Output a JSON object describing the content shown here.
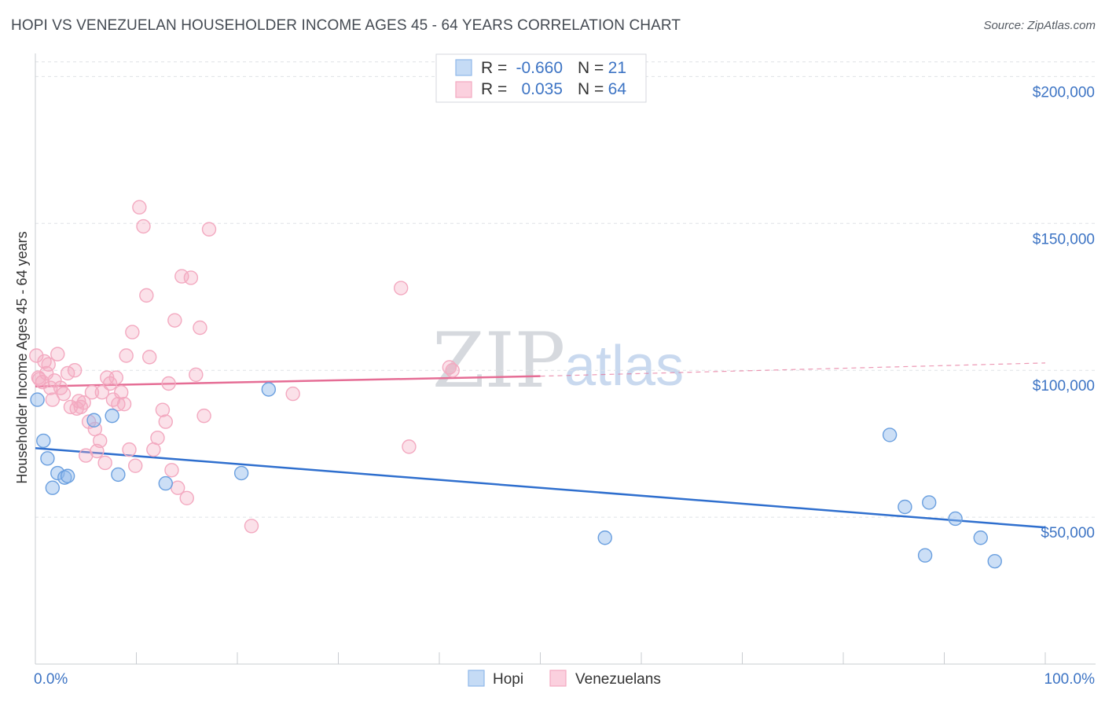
{
  "title": "HOPI VS VENEZUELAN HOUSEHOLDER INCOME AGES 45 - 64 YEARS CORRELATION CHART",
  "source": "Source: ZipAtlas.com",
  "watermark": {
    "zip": "ZIP",
    "atlas": "atlas"
  },
  "colors": {
    "hopi": "#8fb8ea",
    "hopi_line": "#2f6fce",
    "venezuelans": "#f3a9c0",
    "venezuelans_line": "#e56d95",
    "axis_text": "#3d74c4"
  },
  "legend": {
    "rows": [
      {
        "r_label": "R =",
        "r_value": "-0.660",
        "n_label": "N =",
        "n_value": "21"
      },
      {
        "r_label": "R =",
        "r_value": "0.035",
        "n_label": "N =",
        "n_value": "64"
      }
    ]
  },
  "bottom_legend": [
    "Hopi",
    "Venezuelans"
  ],
  "chart_data": {
    "type": "scatter",
    "title": "HOPI VS VENEZUELAN HOUSEHOLDER INCOME AGES 45 - 64 YEARS CORRELATION CHART",
    "xlabel": "",
    "ylabel": "Householder Income Ages 45 - 64 years",
    "xlim": [
      0,
      100
    ],
    "ylim": [
      0,
      210000
    ],
    "x_tick_labels": [
      "0.0%",
      "100.0%"
    ],
    "y_ticks": [
      50000,
      100000,
      150000,
      200000
    ],
    "y_tick_labels": [
      "$50,000",
      "$100,000",
      "$150,000",
      "$200,000"
    ],
    "series": [
      {
        "name": "Hopi",
        "r": -0.66,
        "n": 21,
        "trend": {
          "x": [
            0,
            100
          ],
          "y": [
            73500,
            46500
          ]
        },
        "points": [
          [
            0.2,
            90000
          ],
          [
            0.8,
            76000
          ],
          [
            1.2,
            70000
          ],
          [
            1.7,
            60000
          ],
          [
            2.2,
            65000
          ],
          [
            2.9,
            63500
          ],
          [
            3.2,
            64000
          ],
          [
            5.8,
            83000
          ],
          [
            7.6,
            84500
          ],
          [
            8.2,
            64500
          ],
          [
            12.9,
            61500
          ],
          [
            20.4,
            65000
          ],
          [
            23.1,
            93500
          ],
          [
            56.4,
            43000
          ],
          [
            84.6,
            78000
          ],
          [
            86.1,
            53500
          ],
          [
            88.1,
            37000
          ],
          [
            88.5,
            55000
          ],
          [
            91.1,
            49500
          ],
          [
            93.6,
            43000
          ],
          [
            95.0,
            35000
          ]
        ]
      },
      {
        "name": "Venezuelans",
        "r": 0.035,
        "n": 64,
        "trend": {
          "x": [
            0,
            50
          ],
          "y": [
            94500,
            98000
          ]
        },
        "trend_dashed": {
          "x": [
            50,
            100
          ],
          "y": [
            98000,
            102500
          ]
        },
        "points": [
          [
            0.1,
            105000
          ],
          [
            0.4,
            97000
          ],
          [
            0.7,
            96000
          ],
          [
            0.9,
            103000
          ],
          [
            1.1,
            99000
          ],
          [
            1.3,
            102000
          ],
          [
            1.5,
            94000
          ],
          [
            1.7,
            90000
          ],
          [
            1.9,
            96500
          ],
          [
            2.2,
            105500
          ],
          [
            2.5,
            94000
          ],
          [
            2.8,
            92000
          ],
          [
            3.2,
            99000
          ],
          [
            3.5,
            87500
          ],
          [
            3.9,
            100000
          ],
          [
            4.1,
            87000
          ],
          [
            4.3,
            89500
          ],
          [
            4.5,
            87500
          ],
          [
            4.8,
            89000
          ],
          [
            5.0,
            71000
          ],
          [
            5.3,
            82500
          ],
          [
            5.6,
            92500
          ],
          [
            5.9,
            80000
          ],
          [
            6.1,
            72500
          ],
          [
            6.4,
            76000
          ],
          [
            6.6,
            92500
          ],
          [
            6.9,
            68500
          ],
          [
            7.1,
            97500
          ],
          [
            7.4,
            95500
          ],
          [
            7.7,
            90000
          ],
          [
            8.0,
            97500
          ],
          [
            8.2,
            88500
          ],
          [
            8.5,
            92500
          ],
          [
            8.8,
            88500
          ],
          [
            9.0,
            105000
          ],
          [
            9.3,
            73000
          ],
          [
            9.6,
            113000
          ],
          [
            9.9,
            67500
          ],
          [
            10.3,
            155500
          ],
          [
            10.7,
            149000
          ],
          [
            11.0,
            125500
          ],
          [
            11.3,
            104500
          ],
          [
            11.7,
            73000
          ],
          [
            12.1,
            77000
          ],
          [
            12.6,
            86500
          ],
          [
            12.9,
            82500
          ],
          [
            13.2,
            95500
          ],
          [
            13.5,
            66000
          ],
          [
            13.8,
            117000
          ],
          [
            14.1,
            60000
          ],
          [
            14.5,
            132000
          ],
          [
            15.0,
            56500
          ],
          [
            15.4,
            131500
          ],
          [
            15.9,
            98500
          ],
          [
            16.3,
            114500
          ],
          [
            16.7,
            84500
          ],
          [
            17.2,
            148000
          ],
          [
            21.4,
            47000
          ],
          [
            25.5,
            92000
          ],
          [
            36.2,
            128000
          ],
          [
            37.0,
            74000
          ],
          [
            41.0,
            101000
          ],
          [
            41.3,
            100000
          ],
          [
            0.3,
            97500
          ]
        ]
      }
    ]
  }
}
